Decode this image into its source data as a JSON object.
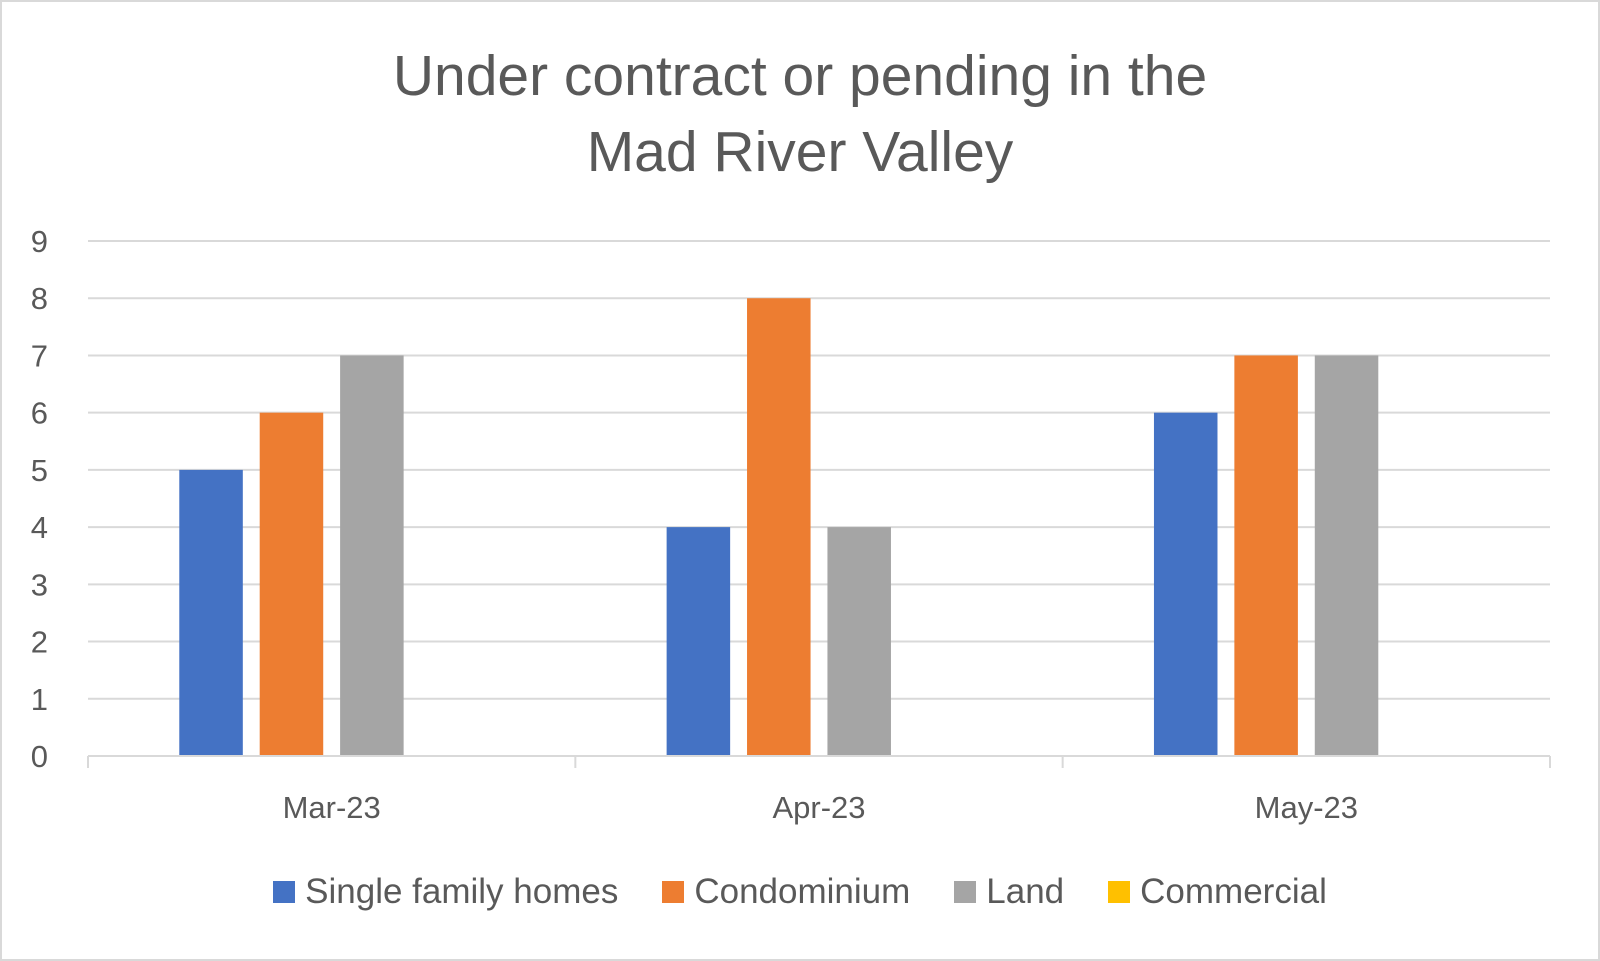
{
  "chart_data": {
    "type": "bar",
    "title_lines": [
      "Under contract or pending in the",
      "Mad River Valley"
    ],
    "categories": [
      "Mar-23",
      "Apr-23",
      "May-23"
    ],
    "series": [
      {
        "name": "Single family homes",
        "color": "#4472C4",
        "values": [
          5,
          4,
          6
        ]
      },
      {
        "name": "Condominium",
        "color": "#ED7D31",
        "values": [
          6,
          8,
          7
        ]
      },
      {
        "name": "Land",
        "color": "#A5A5A5",
        "values": [
          7,
          4,
          7
        ]
      },
      {
        "name": "Commercial",
        "color": "#FFC000",
        "values": [
          0,
          0,
          0
        ]
      }
    ],
    "ylim": [
      0,
      9
    ],
    "yticks": [
      "0",
      "1",
      "2",
      "3",
      "4",
      "5",
      "6",
      "7",
      "8",
      "9"
    ],
    "grid": true,
    "legend_position": "bottom"
  }
}
